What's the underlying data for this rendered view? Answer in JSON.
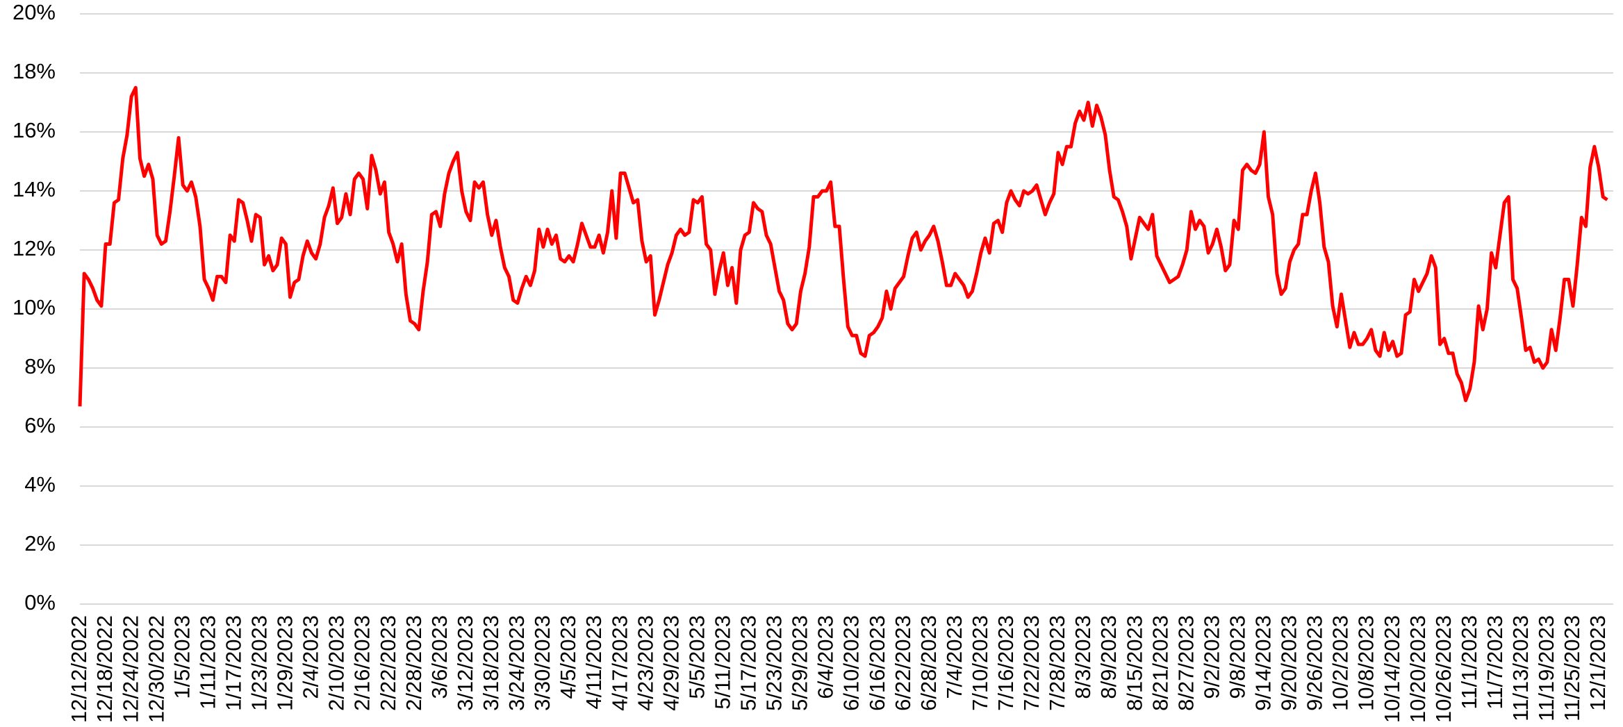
{
  "chart_data": {
    "type": "line",
    "categories": [
      "12/12/2022",
      null,
      null,
      null,
      null,
      null,
      "12/18/2022",
      null,
      null,
      null,
      null,
      null,
      "12/24/2022",
      null,
      null,
      null,
      null,
      null,
      "12/30/2022",
      null,
      null,
      null,
      null,
      null,
      "1/5/2023",
      null,
      null,
      null,
      null,
      null,
      "1/11/2023",
      null,
      null,
      null,
      null,
      null,
      "1/17/2023",
      null,
      null,
      null,
      null,
      null,
      "1/23/2023",
      null,
      null,
      null,
      null,
      null,
      "1/29/2023",
      null,
      null,
      null,
      null,
      null,
      "2/4/2023",
      null,
      null,
      null,
      null,
      null,
      "2/10/2023",
      null,
      null,
      null,
      null,
      null,
      "2/16/2023",
      null,
      null,
      null,
      null,
      null,
      "2/22/2023",
      null,
      null,
      null,
      null,
      null,
      "2/28/2023",
      null,
      null,
      null,
      null,
      null,
      "3/6/2023",
      null,
      null,
      null,
      null,
      null,
      "3/12/2023",
      null,
      null,
      null,
      null,
      null,
      "3/18/2023",
      null,
      null,
      null,
      null,
      null,
      "3/24/2023",
      null,
      null,
      null,
      null,
      null,
      "3/30/2023",
      null,
      null,
      null,
      null,
      null,
      "4/5/2023",
      null,
      null,
      null,
      null,
      null,
      "4/11/2023",
      null,
      null,
      null,
      null,
      null,
      "4/17/2023",
      null,
      null,
      null,
      null,
      null,
      "4/23/2023",
      null,
      null,
      null,
      null,
      null,
      "4/29/2023",
      null,
      null,
      null,
      null,
      null,
      "5/5/2023",
      null,
      null,
      null,
      null,
      null,
      "5/11/2023",
      null,
      null,
      null,
      null,
      null,
      "5/17/2023",
      null,
      null,
      null,
      null,
      null,
      "5/23/2023",
      null,
      null,
      null,
      null,
      null,
      "5/29/2023",
      null,
      null,
      null,
      null,
      null,
      "6/4/2023",
      null,
      null,
      null,
      null,
      null,
      "6/10/2023",
      null,
      null,
      null,
      null,
      null,
      "6/16/2023",
      null,
      null,
      null,
      null,
      null,
      "6/22/2023",
      null,
      null,
      null,
      null,
      null,
      "6/28/2023",
      null,
      null,
      null,
      null,
      null,
      "7/4/2023",
      null,
      null,
      null,
      null,
      null,
      "7/10/2023",
      null,
      null,
      null,
      null,
      null,
      "7/16/2023",
      null,
      null,
      null,
      null,
      null,
      "7/22/2023",
      null,
      null,
      null,
      null,
      null,
      "7/28/2023",
      null,
      null,
      null,
      null,
      null,
      "8/3/2023",
      null,
      null,
      null,
      null,
      null,
      "8/9/2023",
      null,
      null,
      null,
      null,
      null,
      "8/15/2023",
      null,
      null,
      null,
      null,
      null,
      "8/21/2023",
      null,
      null,
      null,
      null,
      null,
      "8/27/2023",
      null,
      null,
      null,
      null,
      null,
      "9/2/2023",
      null,
      null,
      null,
      null,
      null,
      "9/8/2023",
      null,
      null,
      null,
      null,
      null,
      "9/14/2023",
      null,
      null,
      null,
      null,
      null,
      "9/20/2023",
      null,
      null,
      null,
      null,
      null,
      "9/26/2023",
      null,
      null,
      null,
      null,
      null,
      "10/2/2023",
      null,
      null,
      null,
      null,
      null,
      "10/8/2023",
      null,
      null,
      null,
      null,
      null,
      "10/14/2023",
      null,
      null,
      null,
      null,
      null,
      "10/20/2023",
      null,
      null,
      null,
      null,
      null,
      "10/26/2023",
      null,
      null,
      null,
      null,
      null,
      "11/1/2023",
      null,
      null,
      null,
      null,
      null,
      "11/7/2023",
      null,
      null,
      null,
      null,
      null,
      "11/13/2023",
      null,
      null,
      null,
      null,
      null,
      "11/19/2023",
      null,
      null,
      null,
      null,
      null,
      "11/25/2023",
      null,
      null,
      null,
      null,
      null,
      "12/1/2023",
      null,
      null
    ],
    "values": [
      6.7,
      11.2,
      11.0,
      10.7,
      10.3,
      10.1,
      12.2,
      12.2,
      13.6,
      13.7,
      15.1,
      15.9,
      17.2,
      17.5,
      15.1,
      14.5,
      14.9,
      14.4,
      12.5,
      12.2,
      12.3,
      13.3,
      14.5,
      15.8,
      14.2,
      14.0,
      14.3,
      13.8,
      12.8,
      11.0,
      10.7,
      10.3,
      11.1,
      11.1,
      10.9,
      12.5,
      12.3,
      13.7,
      13.6,
      13.0,
      12.3,
      13.2,
      13.1,
      11.5,
      11.8,
      11.3,
      11.5,
      12.4,
      12.2,
      10.4,
      10.9,
      11.0,
      11.8,
      12.3,
      11.9,
      11.7,
      12.2,
      13.1,
      13.5,
      14.1,
      12.9,
      13.1,
      13.9,
      13.2,
      14.4,
      14.6,
      14.4,
      13.4,
      15.2,
      14.7,
      13.9,
      14.3,
      12.6,
      12.2,
      11.6,
      12.2,
      10.5,
      9.6,
      9.5,
      9.3,
      10.6,
      11.6,
      13.2,
      13.3,
      12.8,
      13.9,
      14.6,
      15.0,
      15.3,
      14.0,
      13.3,
      13.0,
      14.3,
      14.1,
      14.3,
      13.2,
      12.5,
      13.0,
      12.1,
      11.4,
      11.1,
      10.3,
      10.2,
      10.7,
      11.1,
      10.8,
      11.3,
      12.7,
      12.1,
      12.7,
      12.2,
      12.5,
      11.7,
      11.6,
      11.8,
      11.6,
      12.2,
      12.9,
      12.5,
      12.1,
      12.1,
      12.5,
      11.9,
      12.6,
      14.0,
      12.4,
      14.6,
      14.6,
      14.1,
      13.6,
      13.7,
      12.3,
      11.6,
      11.8,
      9.8,
      10.3,
      10.9,
      11.5,
      11.9,
      12.5,
      12.7,
      12.5,
      12.6,
      13.7,
      13.6,
      13.8,
      12.2,
      12.0,
      10.5,
      11.3,
      11.9,
      10.8,
      11.4,
      10.2,
      12.0,
      12.5,
      12.6,
      13.6,
      13.4,
      13.3,
      12.5,
      12.2,
      11.4,
      10.6,
      10.3,
      9.5,
      9.3,
      9.5,
      10.6,
      11.2,
      12.1,
      13.8,
      13.8,
      14.0,
      14.0,
      14.3,
      12.8,
      12.8,
      11.0,
      9.4,
      9.1,
      9.1,
      8.5,
      8.4,
      9.1,
      9.2,
      9.4,
      9.7,
      10.6,
      10.0,
      10.7,
      10.9,
      11.1,
      11.8,
      12.4,
      12.6,
      12.0,
      12.3,
      12.5,
      12.8,
      12.3,
      11.6,
      10.8,
      10.8,
      11.2,
      11.0,
      10.8,
      10.4,
      10.6,
      11.2,
      11.9,
      12.4,
      11.9,
      12.9,
      13.0,
      12.6,
      13.6,
      14.0,
      13.7,
      13.5,
      14.0,
      13.9,
      14.0,
      14.2,
      13.7,
      13.2,
      13.6,
      13.9,
      15.3,
      14.9,
      15.5,
      15.5,
      16.3,
      16.7,
      16.4,
      17.0,
      16.2,
      16.9,
      16.5,
      15.9,
      14.7,
      13.8,
      13.7,
      13.3,
      12.8,
      11.7,
      12.4,
      13.1,
      12.9,
      12.7,
      13.2,
      11.8,
      11.5,
      11.2,
      10.9,
      11.0,
      11.1,
      11.5,
      12.0,
      13.3,
      12.7,
      13.0,
      12.8,
      11.9,
      12.2,
      12.7,
      12.1,
      11.3,
      11.5,
      13.0,
      12.7,
      14.7,
      14.9,
      14.7,
      14.6,
      14.9,
      16.0,
      13.8,
      13.2,
      11.2,
      10.5,
      10.7,
      11.6,
      12.0,
      12.2,
      13.2,
      13.2,
      14.0,
      14.6,
      13.6,
      12.1,
      11.6,
      10.1,
      9.4,
      10.5,
      9.6,
      8.7,
      9.2,
      8.8,
      8.8,
      9.0,
      9.3,
      8.6,
      8.4,
      9.2,
      8.6,
      8.9,
      8.4,
      8.5,
      9.8,
      9.9,
      11.0,
      10.6,
      10.9,
      11.2,
      11.8,
      11.4,
      8.8,
      9.0,
      8.5,
      8.5,
      7.8,
      7.5,
      6.9,
      7.3,
      8.2,
      10.1,
      9.3,
      10.0,
      11.9,
      11.4,
      12.5,
      13.6,
      13.8,
      11.0,
      10.7,
      9.7,
      8.6,
      8.7,
      8.2,
      8.3,
      8.0,
      8.2,
      9.3,
      8.6,
      9.7,
      11.0,
      11.0,
      10.1,
      11.5,
      13.1,
      12.8,
      14.8,
      15.5,
      14.8,
      13.8,
      13.7
    ],
    "color": "#ff0000",
    "ylim": [
      0,
      20
    ],
    "yticks": [
      {
        "value": 0,
        "label": "0%"
      },
      {
        "value": 2,
        "label": "2%"
      },
      {
        "value": 4,
        "label": "4%"
      },
      {
        "value": 6,
        "label": "6%"
      },
      {
        "value": 8,
        "label": "8%"
      },
      {
        "value": 10,
        "label": "10%"
      },
      {
        "value": 12,
        "label": "12%"
      },
      {
        "value": 14,
        "label": "14%"
      },
      {
        "value": 16,
        "label": "16%"
      },
      {
        "value": 18,
        "label": "18%"
      },
      {
        "value": 20,
        "label": "20%"
      }
    ],
    "grid": true
  }
}
